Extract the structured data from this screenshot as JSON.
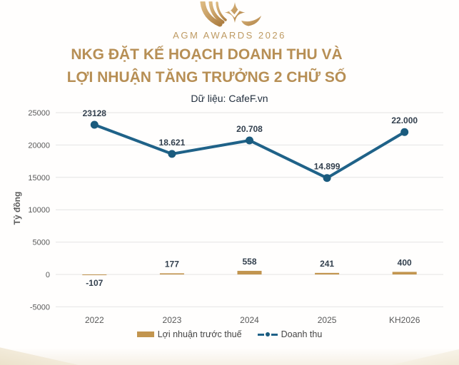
{
  "brand": {
    "logo_text": "AGM AWARDS 2026"
  },
  "header": {
    "title_line1": "NKG ĐẶT KẾ HOẠCH DOANH THU VÀ",
    "title_line2": "LỢI NHUẬN TĂNG TRƯỞNG 2 CHỮ SỐ",
    "subtitle": "Dữ liệu: CafeF.vn"
  },
  "colors": {
    "title_gold": "#B78F55",
    "logo_gold": "#BE9A62",
    "subtitle": "#222F3E",
    "legend_text": "#454545"
  },
  "chart_data": {
    "type": "combo",
    "categories": [
      "2022",
      "2023",
      "2024",
      "2025",
      "KH2026"
    ],
    "series": [
      {
        "name": "Lợi nhuận trước thuế",
        "type": "bar",
        "color": "#C2954F",
        "values": [
          -107,
          177,
          558,
          241,
          400
        ],
        "labels": [
          "-107",
          "177",
          "558",
          "241",
          "400"
        ]
      },
      {
        "name": "Doanh thu",
        "type": "line",
        "color": "#1F6288",
        "dot_color": "#1A5B7E",
        "values": [
          23128,
          18621,
          20708,
          14899,
          22000
        ],
        "labels": [
          "23128",
          "18.621",
          "20.708",
          "14.899",
          "22.000"
        ]
      }
    ],
    "title": "NKG ĐẶT KẾ HOẠCH DOANH THU VÀ LỢI NHUẬN TĂNG TRƯỞNG 2 CHỮ SỐ",
    "xlabel": "",
    "ylabel": "Tỷ đồng",
    "ylim": [
      -5000,
      25000
    ],
    "yticks": [
      25000,
      20000,
      15000,
      10000,
      5000,
      0,
      -5000
    ],
    "grid": true,
    "legend_position": "bottom",
    "colors": {
      "grid": "#E4E4E4",
      "axis_text": "#595959",
      "data_label": "#33404E"
    }
  }
}
